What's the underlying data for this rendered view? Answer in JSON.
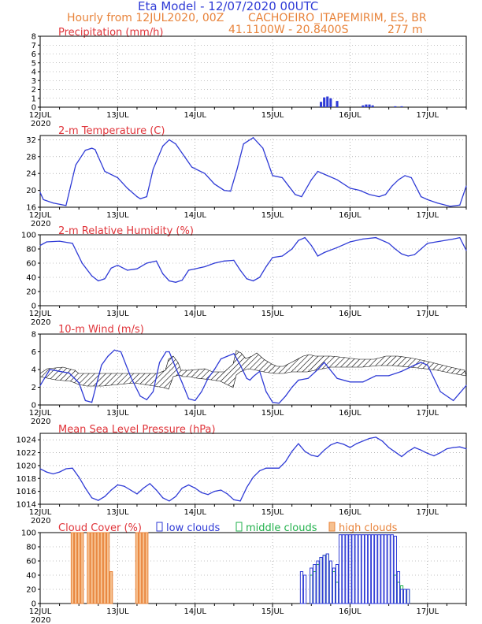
{
  "header": {
    "title": "Eta Model - 12/07/2020 00UTC",
    "subtitle_left": "Hourly from 12JUL2020, 00Z",
    "location": "CACHOEIRO_ITAPEMIRIM, ES, BR",
    "coords": "41.1100W - 20.8400S",
    "elevation": "277   m"
  },
  "colors": {
    "title": "#2f3bd6",
    "header": "#e8833a",
    "panel_title": "#e0343a",
    "series": "#2f3bd6",
    "low_clouds": "#2f3bd6",
    "middle_clouds": "#22b14c",
    "high_clouds": "#e8833a",
    "high_fill": "#f6c08f"
  },
  "time_axis": {
    "tick_labels": [
      "12JUL",
      "13JUL",
      "14JUL",
      "15JUL",
      "16JUL",
      "17JUL"
    ],
    "tick_hours": [
      0,
      24,
      48,
      72,
      96,
      120
    ],
    "year_label": "2020",
    "range_hours": [
      0,
      132
    ]
  },
  "chart_data": [
    {
      "type": "bar",
      "title": "Precipitation (mm/h)",
      "ylim": [
        0,
        8
      ],
      "yticks": [
        0,
        1,
        2,
        3,
        4,
        5,
        6,
        7,
        8
      ],
      "x_hours": [
        87,
        88,
        89,
        90,
        92,
        100,
        101,
        102,
        103,
        110,
        112
      ],
      "values": [
        0.6,
        1.1,
        1.2,
        1.0,
        0.7,
        0.2,
        0.3,
        0.3,
        0.2,
        0.1,
        0.1
      ]
    },
    {
      "type": "line",
      "title": "2-m Temperature (C)",
      "ylim": [
        16,
        33
      ],
      "yticks": [
        16,
        20,
        24,
        28,
        32
      ],
      "x_hours": [
        0,
        1,
        4,
        8,
        11,
        14,
        16,
        17,
        20,
        24,
        27,
        30,
        31,
        33,
        35,
        38,
        40,
        42,
        47,
        51,
        54,
        57,
        59,
        61,
        63,
        66,
        69,
        72,
        75,
        77,
        79,
        81,
        84,
        86,
        89,
        92,
        96,
        99,
        102,
        105,
        107,
        109,
        111,
        113,
        115,
        118,
        120,
        123,
        127,
        130,
        132
      ],
      "values": [
        19.5,
        17.8,
        17.0,
        16.4,
        26.0,
        29.5,
        30.0,
        29.7,
        24.5,
        23.0,
        20.5,
        18.5,
        18.0,
        18.5,
        25.0,
        30.5,
        32.0,
        31.0,
        25.5,
        24.0,
        21.5,
        20.0,
        19.8,
        25.0,
        31.0,
        32.5,
        30.0,
        23.5,
        23.0,
        21.0,
        19.0,
        18.5,
        22.5,
        24.5,
        23.5,
        22.5,
        20.5,
        20.0,
        19.0,
        18.5,
        19.0,
        21.0,
        22.5,
        23.5,
        23.0,
        18.5,
        17.8,
        17.0,
        16.2,
        16.5,
        21.0
      ]
    },
    {
      "type": "line",
      "title": "2-m Relative Humidity (%)",
      "ylim": [
        0,
        100
      ],
      "yticks": [
        0,
        20,
        40,
        60,
        80,
        100
      ],
      "x_hours": [
        0,
        2,
        6,
        10,
        13,
        16,
        18,
        20,
        22,
        24,
        27,
        30,
        33,
        36,
        38,
        40,
        42,
        44,
        46,
        48,
        51,
        54,
        57,
        60,
        62,
        64,
        66,
        68,
        70,
        72,
        75,
        78,
        80,
        82,
        84,
        86,
        88,
        92,
        96,
        100,
        104,
        108,
        110,
        112,
        114,
        116,
        118,
        120,
        124,
        128,
        130,
        132
      ],
      "values": [
        85,
        90,
        91,
        88,
        60,
        42,
        35,
        38,
        53,
        57,
        50,
        52,
        60,
        63,
        45,
        35,
        33,
        36,
        50,
        52,
        55,
        60,
        63,
        64,
        50,
        38,
        35,
        40,
        55,
        68,
        70,
        80,
        92,
        96,
        85,
        70,
        75,
        82,
        90,
        94,
        96,
        88,
        80,
        73,
        70,
        72,
        80,
        88,
        91,
        94,
        96,
        78
      ]
    },
    {
      "type": "line",
      "title": "10-m Wind (m/s)",
      "ylim": [
        0,
        8
      ],
      "yticks": [
        0,
        2,
        4,
        6,
        8
      ],
      "x_hours": [
        0,
        3,
        6,
        9,
        12,
        14,
        16,
        19,
        21,
        23,
        25,
        28,
        31,
        33,
        35,
        37,
        39,
        40,
        42,
        44,
        46,
        48,
        50,
        52,
        54,
        56,
        58,
        60,
        62,
        64,
        65,
        66,
        68,
        70,
        72,
        74,
        76,
        78,
        80,
        83,
        86,
        88,
        92,
        96,
        100,
        104,
        108,
        112,
        116,
        118,
        120,
        124,
        128,
        132
      ],
      "values": [
        2.2,
        4.0,
        3.8,
        3.6,
        2.5,
        0.5,
        0.3,
        4.5,
        5.5,
        6.2,
        6.0,
        3.2,
        1.0,
        0.6,
        1.5,
        4.8,
        6.0,
        6.0,
        4.2,
        2.5,
        0.7,
        0.5,
        1.5,
        3.0,
        4.0,
        5.2,
        5.5,
        5.8,
        4.5,
        3.0,
        2.8,
        3.2,
        3.8,
        1.5,
        0.3,
        0.2,
        1.0,
        2.0,
        2.8,
        3.0,
        4.0,
        4.8,
        3.0,
        2.6,
        2.6,
        3.3,
        3.3,
        3.8,
        4.5,
        4.8,
        4.5,
        1.5,
        0.5,
        2.2
      ]
    },
    {
      "type": "line",
      "title": "Mean Sea Level Pressure (hPa)",
      "ylim": [
        1014,
        1025
      ],
      "yticks": [
        1014,
        1016,
        1018,
        1020,
        1022,
        1024
      ],
      "x_hours": [
        0,
        2,
        4,
        6,
        8,
        10,
        12,
        14,
        16,
        18,
        20,
        22,
        24,
        26,
        28,
        30,
        32,
        34,
        36,
        38,
        40,
        42,
        44,
        46,
        48,
        50,
        52,
        54,
        56,
        58,
        60,
        62,
        64,
        66,
        68,
        70,
        72,
        74,
        76,
        78,
        80,
        82,
        84,
        86,
        88,
        90,
        92,
        94,
        96,
        98,
        100,
        102,
        104,
        106,
        108,
        110,
        112,
        114,
        116,
        118,
        120,
        122,
        124,
        126,
        128,
        130,
        132
      ],
      "values": [
        1019.5,
        1019.0,
        1018.7,
        1019.0,
        1019.5,
        1019.6,
        1018.2,
        1016.5,
        1015.0,
        1014.6,
        1015.2,
        1016.2,
        1017.0,
        1016.8,
        1016.2,
        1015.6,
        1016.5,
        1017.2,
        1016.2,
        1015.0,
        1014.5,
        1015.2,
        1016.5,
        1017.0,
        1016.5,
        1015.8,
        1015.5,
        1016.0,
        1016.2,
        1015.6,
        1014.7,
        1014.5,
        1016.6,
        1018.2,
        1019.2,
        1019.6,
        1019.6,
        1019.6,
        1020.6,
        1022.2,
        1023.4,
        1022.2,
        1021.6,
        1021.4,
        1022.4,
        1023.2,
        1023.6,
        1023.3,
        1022.8,
        1023.4,
        1023.8,
        1024.2,
        1024.4,
        1023.8,
        1022.8,
        1022.1,
        1021.4,
        1022.2,
        1022.8,
        1022.4,
        1021.9,
        1021.5,
        1022.0,
        1022.6,
        1022.8,
        1022.9,
        1022.6
      ]
    },
    {
      "type": "bar",
      "title": "Cloud Cover (%)",
      "ylim": [
        0,
        100
      ],
      "yticks": [
        0,
        20,
        40,
        60,
        80,
        100
      ],
      "legend": [
        "low clouds",
        "middle clouds",
        "high clouds"
      ],
      "series": [
        {
          "name": "high clouds",
          "x_hours": [
            10,
            11,
            12,
            13,
            15,
            16,
            17,
            18,
            19,
            20,
            21,
            22,
            30,
            31,
            32,
            33
          ],
          "values": [
            100,
            100,
            100,
            100,
            100,
            100,
            100,
            100,
            100,
            100,
            100,
            45,
            100,
            100,
            100,
            100
          ]
        },
        {
          "name": "middle clouds",
          "x_hours": [
            84,
            85,
            86,
            87,
            88,
            89,
            90,
            91,
            92,
            110,
            111,
            112,
            113,
            114
          ],
          "values": [
            40,
            45,
            55,
            65,
            68,
            70,
            60,
            45,
            30,
            40,
            30,
            25,
            20,
            20
          ]
        },
        {
          "name": "low clouds",
          "x_hours": [
            81,
            82,
            84,
            85,
            86,
            87,
            88,
            89,
            90,
            91,
            92,
            93,
            94,
            95,
            96,
            97,
            98,
            99,
            100,
            101,
            102,
            103,
            104,
            105,
            106,
            107,
            108,
            109,
            110,
            111,
            112,
            113,
            114
          ],
          "values": [
            45,
            40,
            50,
            55,
            60,
            65,
            68,
            70,
            60,
            50,
            55,
            97,
            97,
            97,
            97,
            97,
            97,
            97,
            97,
            97,
            97,
            97,
            97,
            97,
            97,
            97,
            97,
            97,
            95,
            45,
            20,
            20,
            20
          ]
        }
      ]
    }
  ]
}
